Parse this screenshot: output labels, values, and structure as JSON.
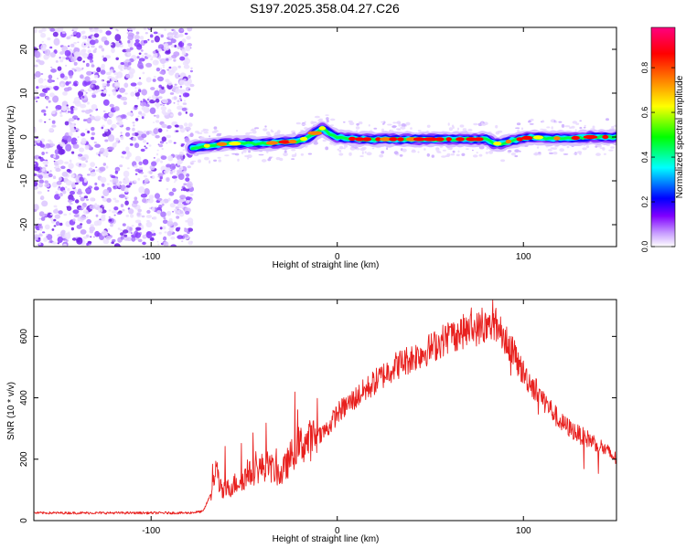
{
  "title": "S197.2025.358.04.27.C26",
  "chart_data": [
    {
      "type": "heatmap",
      "name": "spectrogram",
      "title": "S197.2025.358.04.27.C26",
      "xlabel": "Height of straight line (km)",
      "ylabel": "Frequency (Hz)",
      "xlim": [
        -163,
        150
      ],
      "ylim": [
        -25,
        25
      ],
      "xticks": [
        -100,
        0,
        100
      ],
      "xtick_labels": [
        "-100",
        "0",
        "100"
      ],
      "yticks": [
        -20,
        -10,
        0,
        10,
        20
      ],
      "ytick_labels": [
        "-20",
        "-10",
        "0",
        "10",
        "20"
      ],
      "noise_region_end_km": -78,
      "ridge": {
        "x": [
          -78,
          -70,
          -60,
          -50,
          -40,
          -30,
          -22,
          -15,
          -10,
          -8,
          -5,
          0,
          10,
          20,
          40,
          60,
          80,
          84,
          88,
          95,
          105,
          115,
          125,
          135,
          150
        ],
        "freq": [
          -2.5,
          -2,
          -1.5,
          -1.5,
          -1.5,
          -1.2,
          -1,
          0,
          1.5,
          2,
          1,
          0,
          -0.5,
          -0.5,
          -0.5,
          -0.5,
          -0.5,
          -1.5,
          -1.5,
          -0.7,
          0,
          -0.3,
          -0.3,
          0,
          0
        ]
      },
      "colorbar": {
        "label": "Normalized spectral amplitude",
        "ticks": [
          0.0,
          0.2,
          0.4,
          0.6,
          0.8
        ],
        "tick_labels": [
          "0.0",
          "0.2",
          "0.4",
          "0.6",
          "0.8"
        ],
        "colors": [
          "#ffffff",
          "#8000ff",
          "#0000ff",
          "#00ffff",
          "#00ff00",
          "#ffff00",
          "#ff8000",
          "#ff0000",
          "#ff0080"
        ]
      }
    },
    {
      "type": "line",
      "name": "snr",
      "xlabel": "Height of straight line (km)",
      "ylabel": "SNR (10 * v/v)",
      "xlim": [
        -163,
        150
      ],
      "ylim": [
        0,
        720
      ],
      "xticks": [
        -100,
        0,
        100
      ],
      "xtick_labels": [
        "-100",
        "0",
        "100"
      ],
      "yticks": [
        0,
        200,
        400,
        600
      ],
      "ytick_labels": [
        "0",
        "200",
        "400",
        "600"
      ],
      "color": "#e8201e",
      "x": [
        -163,
        -150,
        -130,
        -110,
        -90,
        -80,
        -72,
        -67,
        -65,
        -62,
        -55,
        -45,
        -38,
        -30,
        -22,
        -15,
        -10,
        -5,
        0,
        10,
        20,
        30,
        40,
        50,
        60,
        70,
        80,
        85,
        90,
        100,
        110,
        120,
        130,
        140,
        150
      ],
      "y": [
        25,
        25,
        25,
        25,
        25,
        25,
        30,
        100,
        170,
        90,
        120,
        160,
        180,
        150,
        240,
        260,
        280,
        300,
        350,
        400,
        450,
        500,
        530,
        560,
        600,
        620,
        630,
        640,
        600,
        480,
        400,
        320,
        280,
        250,
        200
      ]
    }
  ]
}
